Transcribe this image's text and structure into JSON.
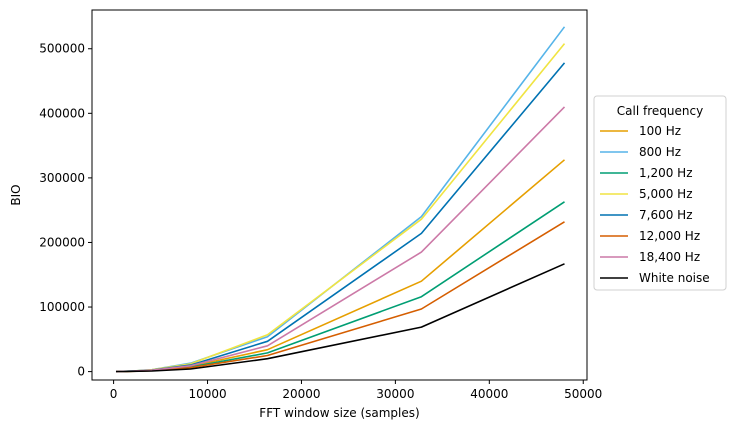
{
  "chart_data": {
    "type": "line",
    "xlabel": "FFT window size (samples)",
    "ylabel": "BIO",
    "xlim": [
      -2300,
      50400
    ],
    "ylim": [
      -13000,
      560000
    ],
    "xticks": [
      0,
      10000,
      20000,
      30000,
      40000,
      50000
    ],
    "yticks": [
      0,
      100000,
      200000,
      300000,
      400000,
      500000
    ],
    "grid": false,
    "legend": {
      "title": "Call frequency",
      "placement": "right-outside"
    },
    "x": [
      256,
      512,
      1024,
      2048,
      4096,
      8192,
      16384,
      32768,
      48000
    ],
    "series": [
      {
        "name": "100 Hz",
        "color": "#E69F00",
        "values": [
          0,
          100,
          300,
          700,
          2000,
          8000,
          34000,
          140000,
          328000
        ]
      },
      {
        "name": "800 Hz",
        "color": "#56B4E9",
        "values": [
          0,
          200,
          500,
          1000,
          3000,
          13000,
          54000,
          240000,
          534000
        ]
      },
      {
        "name": "1,200 Hz",
        "color": "#009E73",
        "values": [
          0,
          100,
          300,
          600,
          1700,
          7000,
          29000,
          116000,
          263000
        ]
      },
      {
        "name": "5,000 Hz",
        "color": "#F0E442",
        "values": [
          0,
          200,
          500,
          1000,
          3000,
          12000,
          57000,
          236000,
          508000
        ]
      },
      {
        "name": "7,600 Hz",
        "color": "#0072B2",
        "values": [
          0,
          200,
          400,
          900,
          2500,
          10000,
          47000,
          214000,
          478000
        ]
      },
      {
        "name": "12,000 Hz",
        "color": "#D55E00",
        "values": [
          0,
          100,
          200,
          500,
          1400,
          6000,
          25000,
          97000,
          232000
        ]
      },
      {
        "name": "18,400 Hz",
        "color": "#CC79A7",
        "values": [
          0,
          100,
          300,
          800,
          2200,
          9000,
          40000,
          185000,
          410000
        ]
      },
      {
        "name": "White noise",
        "color": "#000000",
        "values": [
          0,
          100,
          200,
          400,
          1000,
          4000,
          20000,
          69000,
          167000
        ]
      }
    ]
  }
}
